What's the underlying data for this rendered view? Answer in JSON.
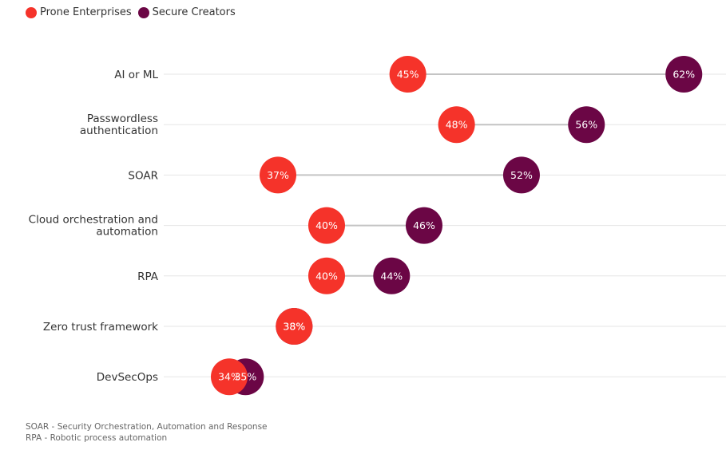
{
  "chart_data": {
    "type": "scatter",
    "subtype": "dumbbell",
    "title": "",
    "xlabel": "",
    "ylabel": "",
    "categories": [
      "AI or ML",
      "Passwordless authentication",
      "SOAR",
      "Cloud orchestration and automation",
      "RPA",
      "Zero trust framework",
      "DevSecOps"
    ],
    "series": [
      {
        "name": "Prone Enterprises",
        "color": "#f5332a",
        "values": [
          45,
          48,
          37,
          40,
          40,
          38,
          34
        ]
      },
      {
        "name": "Secure Creators",
        "color": "#6b0645",
        "values": [
          62,
          56,
          52,
          46,
          44,
          38,
          35
        ]
      }
    ],
    "value_suffix": "%",
    "xlim": [
      30,
      65
    ],
    "grid": true,
    "legend_position": "top-left"
  },
  "legend": [
    {
      "label": "Prone Enterprises",
      "color": "#f5332a"
    },
    {
      "label": "Secure Creators",
      "color": "#6b0645"
    }
  ],
  "notes": {
    "line1": "SOAR - Security Orchestration, Automation and Response",
    "line2": "RPA - Robotic process automation"
  }
}
